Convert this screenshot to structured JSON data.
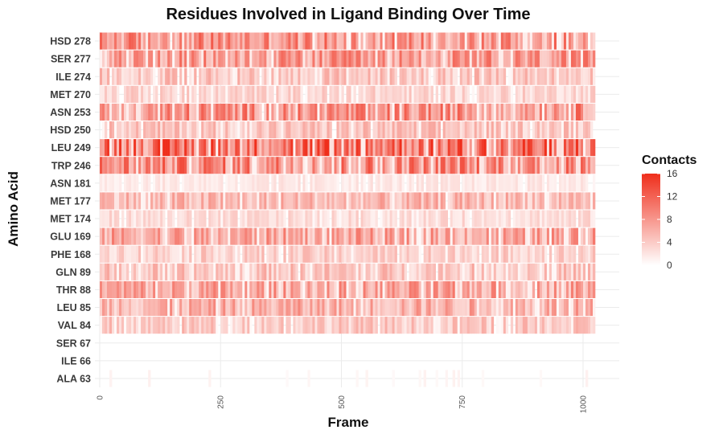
{
  "chart_data": {
    "type": "heatmap",
    "title": "Residues Involved in Ligand Binding Over Time",
    "xlabel": "Frame",
    "ylabel": "Amino Acid",
    "xlim": [
      0,
      1025
    ],
    "x_ticks": [
      0,
      250,
      500,
      750,
      1000
    ],
    "categories": [
      "HSD 278",
      "SER 277",
      "ILE 274",
      "MET 270",
      "ASN 253",
      "HSD 250",
      "LEU 249",
      "TRP 246",
      "ASN 181",
      "MET 177",
      "MET 174",
      "GLU 169",
      "PHE 168",
      "GLN 89",
      "THR 88",
      "LEU 85",
      "VAL 84",
      "SER 67",
      "ILE 66",
      "ALA 63"
    ],
    "intensity": [
      0.55,
      0.5,
      0.3,
      0.22,
      0.55,
      0.3,
      0.75,
      0.6,
      0.12,
      0.35,
      0.18,
      0.45,
      0.25,
      0.3,
      0.45,
      0.4,
      0.28,
      0.02,
      0.01,
      0.05
    ],
    "color_scale": {
      "title": "Contacts",
      "min": 0,
      "max": 16,
      "ticks": [
        0,
        4,
        8,
        12,
        16
      ],
      "low_color": "#ffffff",
      "high_color": "#ef2e1b"
    },
    "grid": true,
    "legend_position": "right"
  }
}
